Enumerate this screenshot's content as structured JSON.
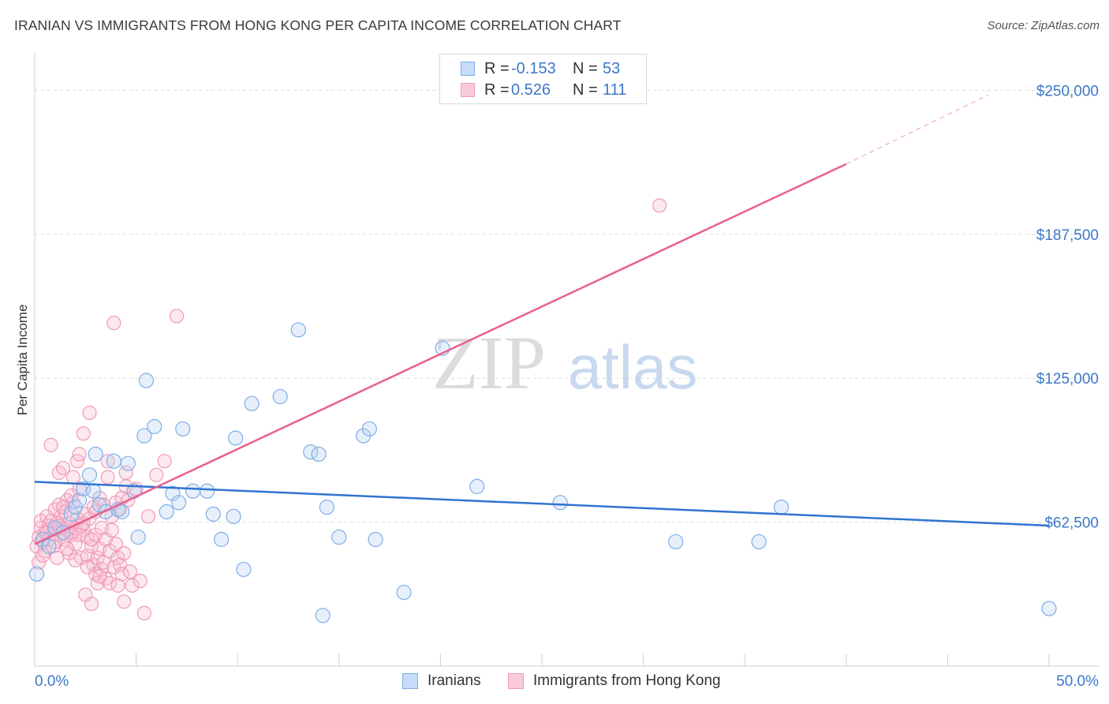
{
  "header": {
    "title": "IRANIAN VS IMMIGRANTS FROM HONG KONG PER CAPITA INCOME CORRELATION CHART",
    "source": "Source: ZipAtlas.com"
  },
  "watermark": {
    "zip": "ZIP",
    "atlas": "atlas"
  },
  "legend": {
    "rows": [
      {
        "r_label": "R =",
        "r_value": "-0.153",
        "n_label": "N =",
        "n_value": "53",
        "color": "#7eaee8"
      },
      {
        "r_label": "R =",
        "r_value": "0.526",
        "n_label": "N =",
        "n_value": "111",
        "color": "#f09ab8"
      }
    ]
  },
  "bottom_legend": {
    "iranians": "Iranians",
    "hong_kong": "Immigrants from Hong Kong"
  },
  "chart_data": {
    "type": "scatter",
    "title": "IRANIAN VS IMMIGRANTS FROM HONG KONG PER CAPITA INCOME CORRELATION CHART",
    "ylabel": "Per Capita Income",
    "xlabel": "",
    "xlim": [
      0,
      50
    ],
    "ylim": [
      0,
      262500
    ],
    "x_tick_labels": [
      "0.0%",
      "50.0%"
    ],
    "y_ticks": [
      62500,
      125000,
      187500,
      250000
    ],
    "y_tick_labels": [
      "$62,500",
      "$125,000",
      "$187,500",
      "$250,000"
    ],
    "grid": true,
    "legend_position": "top-center",
    "colors": {
      "iranians": "#7eaee8",
      "iranians_line": "#2f74d0",
      "hong_kong": "#f09ab8",
      "hong_kong_line": "#e8618c",
      "tick_label": "#3b78c8"
    },
    "series": [
      {
        "name": "Iranians",
        "trend": {
          "x": [
            0,
            50
          ],
          "y": [
            80000,
            61000
          ]
        },
        "points": [
          [
            0.1,
            40000
          ],
          [
            1.8,
            66000
          ],
          [
            2.0,
            69000
          ],
          [
            2.2,
            72000
          ],
          [
            2.4,
            77000
          ],
          [
            2.7,
            83000
          ],
          [
            2.9,
            76000
          ],
          [
            3.0,
            92000
          ],
          [
            3.2,
            70000
          ],
          [
            3.5,
            67000
          ],
          [
            3.9,
            89000
          ],
          [
            4.1,
            68000
          ],
          [
            4.3,
            67000
          ],
          [
            4.6,
            88000
          ],
          [
            4.9,
            76000
          ],
          [
            5.1,
            56000
          ],
          [
            5.4,
            100000
          ],
          [
            5.5,
            124000
          ],
          [
            5.9,
            104000
          ],
          [
            6.5,
            67000
          ],
          [
            6.8,
            75000
          ],
          [
            7.1,
            71000
          ],
          [
            7.3,
            103000
          ],
          [
            7.8,
            76000
          ],
          [
            8.5,
            76000
          ],
          [
            8.8,
            66000
          ],
          [
            9.2,
            55000
          ],
          [
            9.8,
            65000
          ],
          [
            9.9,
            99000
          ],
          [
            10.3,
            42000
          ],
          [
            10.7,
            114000
          ],
          [
            12.1,
            117000
          ],
          [
            13.0,
            146000
          ],
          [
            13.6,
            93000
          ],
          [
            14.0,
            92000
          ],
          [
            14.2,
            22000
          ],
          [
            14.4,
            69000
          ],
          [
            15.0,
            56000
          ],
          [
            16.2,
            100000
          ],
          [
            16.5,
            103000
          ],
          [
            16.8,
            55000
          ],
          [
            18.2,
            32000
          ],
          [
            20.1,
            138000
          ],
          [
            21.8,
            78000
          ],
          [
            25.9,
            71000
          ],
          [
            31.6,
            54000
          ],
          [
            35.7,
            54000
          ],
          [
            36.8,
            69000
          ],
          [
            50.0,
            25000
          ],
          [
            0.4,
            55000
          ],
          [
            1.0,
            60000
          ],
          [
            1.4,
            58000
          ],
          [
            0.7,
            52000
          ]
        ]
      },
      {
        "name": "Immigrants from Hong Kong",
        "trend": {
          "x": [
            0,
            40
          ],
          "y": [
            53000,
            218000
          ]
        },
        "trend_dashed": {
          "x": [
            40,
            47
          ],
          "y": [
            218000,
            248000
          ]
        },
        "points": [
          [
            0.1,
            52000
          ],
          [
            0.2,
            56000
          ],
          [
            0.3,
            60000
          ],
          [
            0.3,
            63000
          ],
          [
            0.4,
            54000
          ],
          [
            0.5,
            58000
          ],
          [
            0.5,
            50000
          ],
          [
            0.6,
            65000
          ],
          [
            0.7,
            61000
          ],
          [
            0.7,
            55000
          ],
          [
            0.8,
            96000
          ],
          [
            0.9,
            52000
          ],
          [
            1.0,
            59000
          ],
          [
            1.0,
            68000
          ],
          [
            1.1,
            47000
          ],
          [
            1.1,
            62000
          ],
          [
            1.2,
            84000
          ],
          [
            1.2,
            70000
          ],
          [
            1.3,
            57000
          ],
          [
            1.3,
            65000
          ],
          [
            1.4,
            60000
          ],
          [
            1.4,
            86000
          ],
          [
            1.5,
            67000
          ],
          [
            1.5,
            55000
          ],
          [
            1.6,
            72000
          ],
          [
            1.6,
            59000
          ],
          [
            1.7,
            62000
          ],
          [
            1.7,
            49000
          ],
          [
            1.8,
            58000
          ],
          [
            1.8,
            57000
          ],
          [
            1.9,
            71000
          ],
          [
            1.9,
            82000
          ],
          [
            2.0,
            60000
          ],
          [
            2.0,
            53000
          ],
          [
            2.1,
            89000
          ],
          [
            2.1,
            64000
          ],
          [
            2.2,
            92000
          ],
          [
            2.2,
            77000
          ],
          [
            2.3,
            47000
          ],
          [
            2.3,
            61000
          ],
          [
            2.4,
            101000
          ],
          [
            2.4,
            59000
          ],
          [
            2.5,
            31000
          ],
          [
            2.5,
            66000
          ],
          [
            2.6,
            56000
          ],
          [
            2.6,
            48000
          ],
          [
            2.7,
            110000
          ],
          [
            2.7,
            64000
          ],
          [
            2.8,
            27000
          ],
          [
            2.8,
            52000
          ],
          [
            2.9,
            44000
          ],
          [
            2.9,
            69000
          ],
          [
            3.0,
            40000
          ],
          [
            3.0,
            57000
          ],
          [
            3.1,
            36000
          ],
          [
            3.1,
            47000
          ],
          [
            3.2,
            51000
          ],
          [
            3.2,
            73000
          ],
          [
            3.3,
            42000
          ],
          [
            3.3,
            60000
          ],
          [
            3.4,
            45000
          ],
          [
            3.4,
            70000
          ],
          [
            3.5,
            55000
          ],
          [
            3.5,
            38000
          ],
          [
            3.6,
            82000
          ],
          [
            3.6,
            89000
          ],
          [
            3.7,
            36000
          ],
          [
            3.7,
            50000
          ],
          [
            3.8,
            65000
          ],
          [
            3.8,
            59000
          ],
          [
            3.9,
            149000
          ],
          [
            3.9,
            43000
          ],
          [
            4.0,
            71000
          ],
          [
            4.0,
            53000
          ],
          [
            4.1,
            35000
          ],
          [
            4.1,
            47000
          ],
          [
            4.2,
            44000
          ],
          [
            4.2,
            68000
          ],
          [
            4.3,
            40000
          ],
          [
            4.3,
            73000
          ],
          [
            4.4,
            28000
          ],
          [
            4.4,
            49000
          ],
          [
            4.5,
            78000
          ],
          [
            4.5,
            84000
          ],
          [
            4.6,
            72000
          ],
          [
            4.7,
            41000
          ],
          [
            4.8,
            35000
          ],
          [
            5.0,
            77000
          ],
          [
            5.2,
            37000
          ],
          [
            5.4,
            23000
          ],
          [
            5.6,
            65000
          ],
          [
            6.0,
            83000
          ],
          [
            6.4,
            89000
          ],
          [
            7.0,
            152000
          ],
          [
            30.8,
            200000
          ],
          [
            0.2,
            45000
          ],
          [
            0.4,
            48000
          ],
          [
            0.6,
            58000
          ],
          [
            0.8,
            63000
          ],
          [
            1.0,
            54000
          ],
          [
            1.2,
            61000
          ],
          [
            1.4,
            69000
          ],
          [
            1.6,
            51000
          ],
          [
            1.8,
            74000
          ],
          [
            2.0,
            46000
          ],
          [
            2.2,
            57000
          ],
          [
            2.4,
            62000
          ],
          [
            2.6,
            43000
          ],
          [
            2.8,
            55000
          ],
          [
            3.0,
            67000
          ],
          [
            3.2,
            39000
          ]
        ]
      }
    ]
  }
}
